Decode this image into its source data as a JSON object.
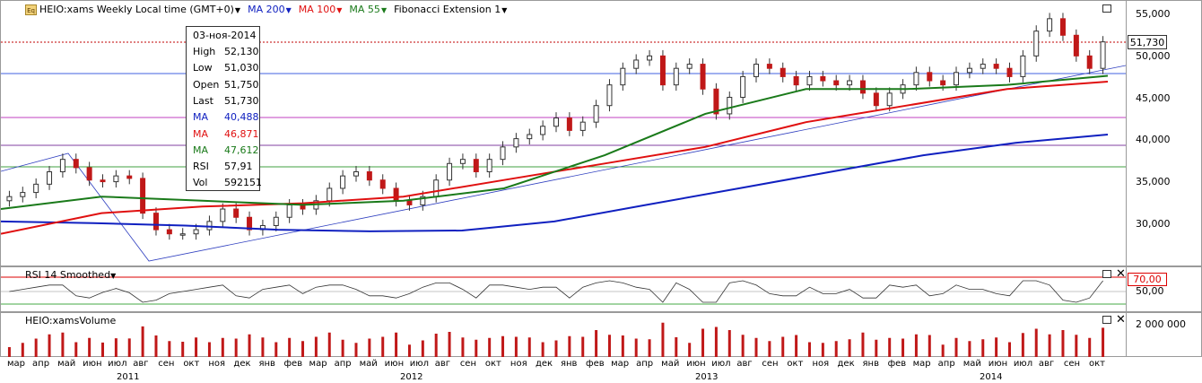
{
  "header": {
    "symbol_label": "HEIO:xams Weekly Local time (GMT+0)",
    "ma200_label": "MA 200",
    "ma100_label": "MA 100",
    "ma55_label": "MA 55",
    "fib_label": "Fibonacci Extension 1",
    "icon_text": "Eq"
  },
  "colors": {
    "ma200": "#1020c0",
    "ma100": "#e01010",
    "ma55": "#1a7a1a",
    "candle": "#c01818",
    "fib_line": "#3040c0",
    "last_price_line": "#c00000"
  },
  "price_axis": {
    "ticks": [
      "55,000",
      "50,000",
      "45,000",
      "40,000",
      "35,000",
      "30,000"
    ],
    "last_price": "51,730"
  },
  "info_box": {
    "date": "03-ноя-2014",
    "rows": [
      {
        "k": "High",
        "v": "52,130",
        "color": "#000000"
      },
      {
        "k": "Low",
        "v": "51,030",
        "color": "#000000"
      },
      {
        "k": "Open",
        "v": "51,750",
        "color": "#000000"
      },
      {
        "k": "Last",
        "v": "51,730",
        "color": "#000000"
      },
      {
        "k": "MA",
        "v": "40,488",
        "color": "#1020c0"
      },
      {
        "k": "MA",
        "v": "46,871",
        "color": "#e01010"
      },
      {
        "k": "MA",
        "v": "47,612",
        "color": "#1a7a1a"
      },
      {
        "k": "RSI",
        "v": "57,91",
        "color": "#000000"
      },
      {
        "k": "Vol",
        "v": "592151",
        "color": "#000000"
      }
    ]
  },
  "rsi_panel": {
    "title": "RSI 14 Smoothed",
    "level_70": "70,00",
    "level_50": "50,00"
  },
  "volume_panel": {
    "title": "HEIO:xamsVolume",
    "tick": "2 000 000"
  },
  "time_axis": {
    "months": [
      "мар",
      "апр",
      "май",
      "июн",
      "июл",
      "авг",
      "сен",
      "окт",
      "ноя",
      "дек",
      "янв",
      "фев",
      "мар",
      "апр",
      "май",
      "июн",
      "июл",
      "авг",
      "сен",
      "окт",
      "ноя",
      "дек",
      "янв",
      "фев",
      "мар",
      "апр",
      "май",
      "июн",
      "июл",
      "авг",
      "сен",
      "окт",
      "ноя",
      "дек",
      "янв",
      "фев",
      "мар",
      "апр",
      "май",
      "июн",
      "июл",
      "авг",
      "сен",
      "окт"
    ],
    "years": [
      "2011",
      "2012",
      "2013",
      "2014"
    ]
  },
  "chart_data": {
    "type": "candlestick",
    "title": "HEIO:xams Weekly",
    "ylim": [
      25000,
      56000
    ],
    "weekly_close_approx": [
      33000,
      33500,
      34500,
      36000,
      37500,
      36500,
      35000,
      34800,
      35500,
      35200,
      31000,
      29000,
      28500,
      28500,
      29000,
      30000,
      31500,
      30500,
      29000,
      29500,
      30500,
      32000,
      31500,
      32500,
      34000,
      35500,
      36000,
      35000,
      34000,
      32500,
      32000,
      33000,
      35000,
      37000,
      37500,
      36000,
      37500,
      39000,
      40000,
      40500,
      41500,
      42500,
      41000,
      42000,
      44000,
      46500,
      48500,
      49500,
      50000,
      46500,
      48500,
      49000,
      46000,
      43000,
      45000,
      47500,
      49000,
      48500,
      47500,
      46500,
      47500,
      47000,
      46500,
      47000,
      45500,
      44000,
      45500,
      46500,
      48000,
      47000,
      46500,
      48000,
      48500,
      49000,
      48500,
      47500,
      50000,
      53000,
      54500,
      52500,
      50000,
      48500,
      51700
    ],
    "ma200_approx": [
      30000,
      29800,
      29500,
      29000,
      28800,
      28900,
      30000,
      32000,
      34000,
      36000,
      38000,
      39500,
      40500
    ],
    "ma100_approx": [
      28500,
      31000,
      31800,
      32200,
      33000,
      35000,
      37000,
      39000,
      42000,
      44000,
      46000,
      46900
    ],
    "ma55_approx": [
      31500,
      33000,
      32500,
      32000,
      32500,
      34000,
      38000,
      43000,
      46000,
      46000,
      46500,
      47600
    ]
  }
}
